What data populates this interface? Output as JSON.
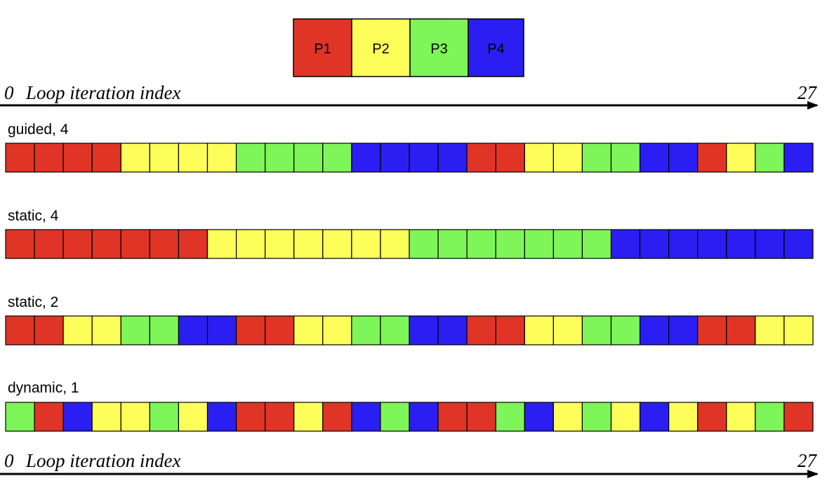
{
  "colors": {
    "P1": "#e03427",
    "P2": "#fdfe59",
    "P3": "#7ef559",
    "P4": "#2a1ef2"
  },
  "legend": [
    {
      "id": "P1",
      "label": "P1"
    },
    {
      "id": "P2",
      "label": "P2"
    },
    {
      "id": "P3",
      "label": "P3"
    },
    {
      "id": "P4",
      "label": "P4"
    }
  ],
  "axis": {
    "start": "0",
    "label": "Loop iteration index",
    "end": "27"
  },
  "rows": [
    {
      "label": "guided, 4",
      "assignment": [
        "P1",
        "P1",
        "P1",
        "P1",
        "P2",
        "P2",
        "P2",
        "P2",
        "P3",
        "P3",
        "P3",
        "P3",
        "P4",
        "P4",
        "P4",
        "P4",
        "P1",
        "P1",
        "P2",
        "P2",
        "P3",
        "P3",
        "P4",
        "P4",
        "P1",
        "P2",
        "P3",
        "P4"
      ]
    },
    {
      "label": "static, 4",
      "assignment": [
        "P1",
        "P1",
        "P1",
        "P1",
        "P1",
        "P1",
        "P1",
        "P2",
        "P2",
        "P2",
        "P2",
        "P2",
        "P2",
        "P2",
        "P3",
        "P3",
        "P3",
        "P3",
        "P3",
        "P3",
        "P3",
        "P4",
        "P4",
        "P4",
        "P4",
        "P4",
        "P4",
        "P4"
      ]
    },
    {
      "label": "static, 2",
      "assignment": [
        "P1",
        "P1",
        "P2",
        "P2",
        "P3",
        "P3",
        "P4",
        "P4",
        "P1",
        "P1",
        "P2",
        "P2",
        "P3",
        "P3",
        "P4",
        "P4",
        "P1",
        "P1",
        "P2",
        "P2",
        "P3",
        "P3",
        "P4",
        "P4",
        "P1",
        "P1",
        "P2",
        "P2"
      ]
    },
    {
      "label": "dynamic, 1",
      "assignment": [
        "P3",
        "P1",
        "P4",
        "P2",
        "P2",
        "P3",
        "P2",
        "P4",
        "P1",
        "P1",
        "P2",
        "P1",
        "P4",
        "P3",
        "P4",
        "P1",
        "P1",
        "P3",
        "P4",
        "P2",
        "P3",
        "P2",
        "P4",
        "P2",
        "P1",
        "P2",
        "P3",
        "P1"
      ]
    }
  ]
}
